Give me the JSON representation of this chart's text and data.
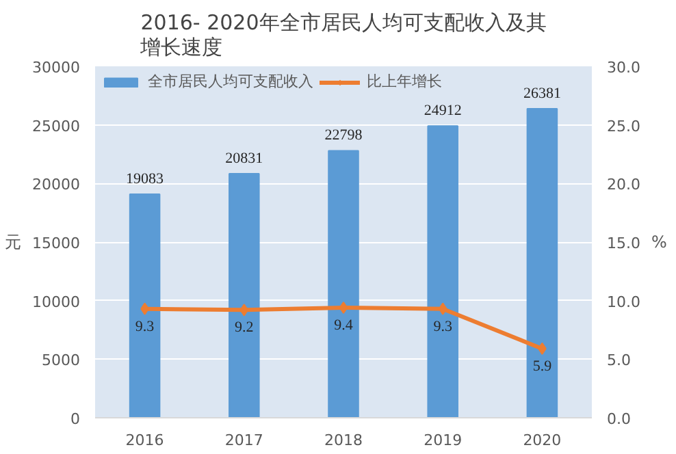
{
  "chart_data": {
    "type": "bar",
    "title": "2016- 2020年全市居民人均可支配收入及其增长速度",
    "ylabel": "元",
    "y2label": "%",
    "categories": [
      "2016",
      "2017",
      "2018",
      "2019",
      "2020"
    ],
    "series": [
      {
        "name": "全市居民人均可支配收入",
        "color": "#5b9bd5",
        "values": [
          19083,
          20831,
          22798,
          24912,
          26381
        ]
      },
      {
        "name": "比上年增长",
        "type": "line",
        "axis": "y2",
        "color": "#ed7d31",
        "values": [
          9.3,
          9.2,
          9.4,
          9.3,
          5.9
        ]
      }
    ],
    "ylim": [
      0,
      30000
    ],
    "yticks": [
      0,
      5000,
      10000,
      15000,
      20000,
      25000,
      30000
    ],
    "y2lim": [
      0,
      30
    ],
    "y2ticks": [
      {
        "value": 0,
        "label": "0.0"
      },
      {
        "value": 5,
        "label": "5.0"
      },
      {
        "value": 10,
        "label": "10.0"
      },
      {
        "value": 15,
        "label": "15.0"
      },
      {
        "value": 20,
        "label": "20.0"
      },
      {
        "value": 25,
        "label": "25.0"
      },
      {
        "value": 30,
        "label": "30.0"
      }
    ],
    "grid": "y",
    "legend": "top",
    "marker": "diamond",
    "line_style": "solid",
    "data_labels": true
  }
}
